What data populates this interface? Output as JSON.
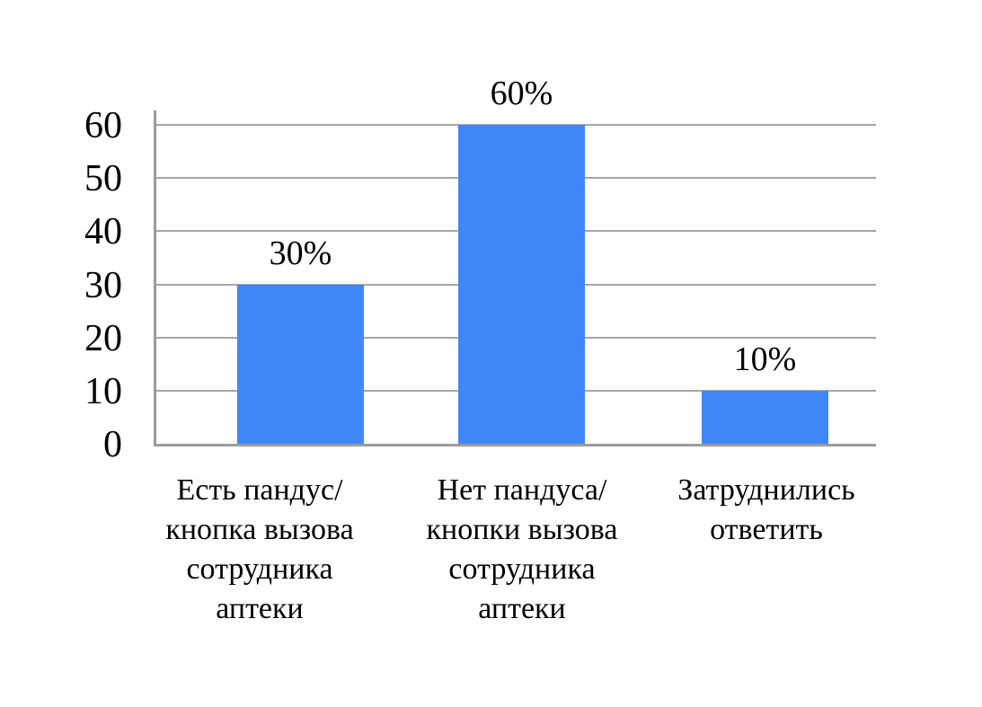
{
  "colors": {
    "bar": "#4287F7",
    "gridline": "#A6A6A6",
    "axis": "#9B9B9B",
    "text": "#000000",
    "background": "#FFFFFF"
  },
  "chart_data": {
    "type": "bar",
    "categories": [
      "Есть пандус/ кнопка вызова сотрудника аптеки",
      "Нет пандуса/ кнопки вызова сотрудника аптеки",
      "Затруднились ответить"
    ],
    "category_lines": [
      [
        "Есть пандус/",
        "кнопка вызова",
        "сотрудника",
        "аптеки"
      ],
      [
        "Нет пандуса/",
        "кнопки вызова",
        "сотрудника",
        "аптеки"
      ],
      [
        "Затруднились",
        "ответить"
      ]
    ],
    "values": [
      30,
      60,
      10
    ],
    "data_labels": [
      "30%",
      "60%",
      "10%"
    ],
    "yticks": [
      0,
      10,
      20,
      30,
      40,
      50,
      60
    ],
    "ytick_labels": [
      "0",
      "10",
      "20",
      "30",
      "40",
      "50",
      "60"
    ],
    "ylim": [
      0,
      60
    ],
    "xlabel": "",
    "ylabel": "",
    "grid": true,
    "legend": false
  }
}
